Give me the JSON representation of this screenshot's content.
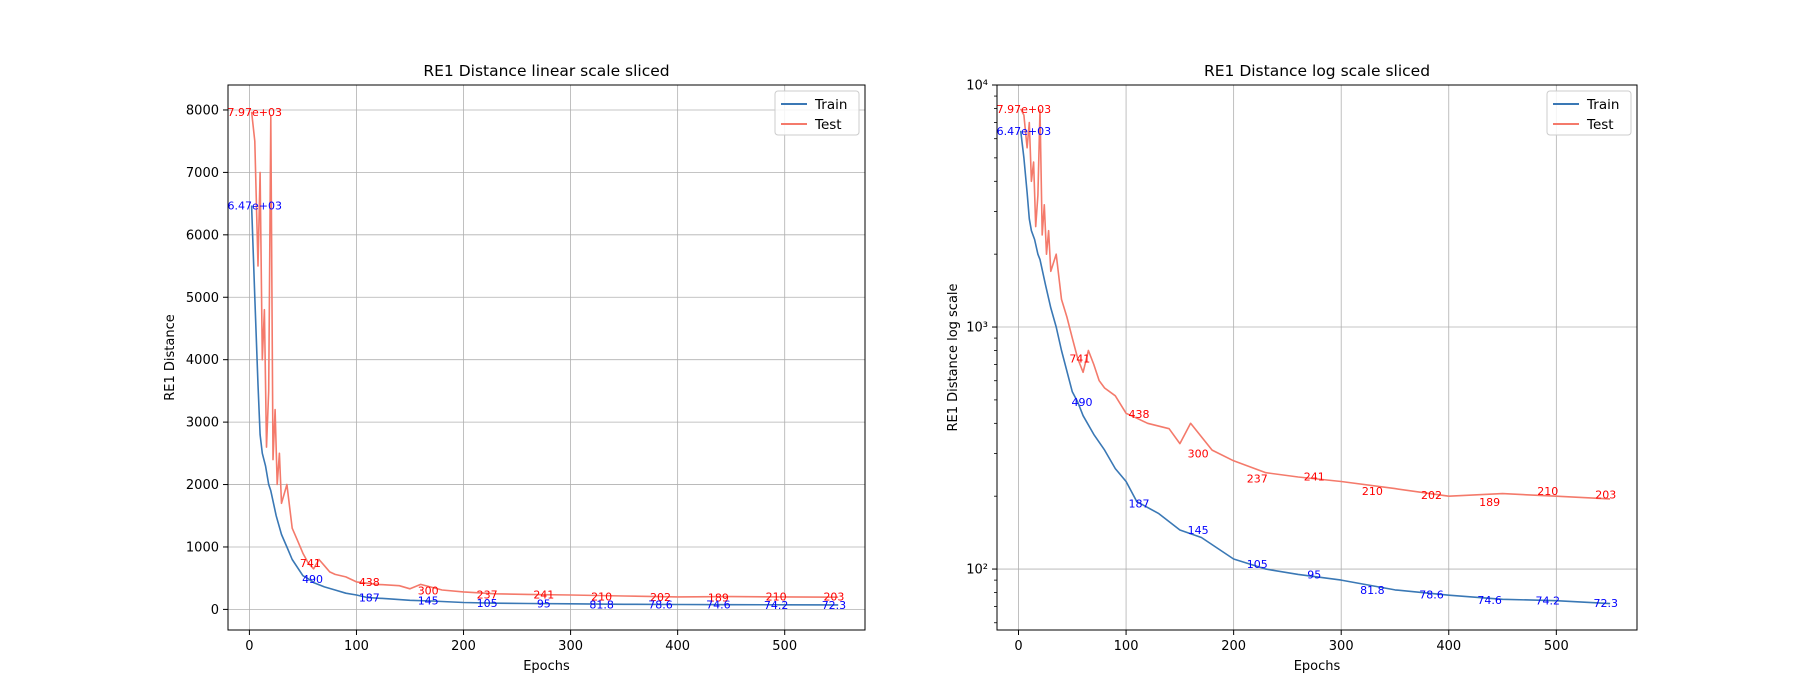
{
  "chart_data": [
    {
      "type": "line",
      "title": "RE1 Distance linear scale sliced",
      "xlabel": "Epochs",
      "ylabel": "RE1 Distance",
      "xlim": [
        -20,
        575
      ],
      "ylim": [
        -330,
        8400
      ],
      "yscale": "linear",
      "xticks": [
        0,
        100,
        200,
        300,
        400,
        500
      ],
      "xtick_labels": [
        "0",
        "100",
        "200",
        "300",
        "400",
        "500"
      ],
      "yticks": [
        0,
        1000,
        2000,
        3000,
        4000,
        5000,
        6000,
        7000,
        8000
      ],
      "ytick_labels": [
        "0",
        "1000",
        "2000",
        "3000",
        "4000",
        "5000",
        "6000",
        "7000",
        "8000"
      ],
      "grid": true,
      "legend": {
        "position": "top-right",
        "entries": [
          "Train",
          "Test"
        ]
      },
      "series": [
        {
          "name": "Train",
          "color": "#3a78b5",
          "x": [
            2,
            5,
            8,
            10,
            12,
            15,
            18,
            20,
            25,
            30,
            35,
            40,
            50,
            55,
            60,
            70,
            80,
            90,
            100,
            110,
            130,
            150,
            170,
            200,
            230,
            260,
            300,
            350,
            400,
            450,
            500,
            550
          ],
          "y": [
            6470,
            5000,
            3600,
            2800,
            2500,
            2300,
            2000,
            1900,
            1500,
            1200,
            1000,
            800,
            540,
            490,
            430,
            360,
            310,
            260,
            230,
            190,
            170,
            145,
            135,
            110,
            100,
            95,
            90,
            82,
            78,
            75,
            74,
            72
          ]
        },
        {
          "name": "Test",
          "color": "#f47a6b",
          "x": [
            2,
            5,
            8,
            10,
            12,
            14,
            16,
            18,
            20,
            22,
            24,
            26,
            28,
            30,
            35,
            40,
            45,
            50,
            55,
            60,
            65,
            70,
            75,
            80,
            90,
            100,
            110,
            120,
            140,
            150,
            160,
            180,
            200,
            230,
            260,
            300,
            350,
            400,
            450,
            500,
            550
          ],
          "y": [
            7970,
            7500,
            5500,
            7000,
            4000,
            4800,
            2600,
            3500,
            7900,
            2400,
            3200,
            2000,
            2500,
            1700,
            2000,
            1300,
            1100,
            900,
            741,
            650,
            800,
            700,
            600,
            560,
            520,
            440,
            420,
            400,
            380,
            330,
            400,
            310,
            280,
            250,
            240,
            230,
            215,
            200,
            205,
            200,
            195
          ]
        }
      ],
      "annotations": [
        {
          "text": "7.97e+03",
          "x": 5,
          "y": 7970,
          "series": "Test"
        },
        {
          "text": "6.47e+03",
          "x": 5,
          "y": 6470,
          "series": "Train"
        },
        {
          "text": "741",
          "x": 57,
          "y": 741,
          "series": "Test"
        },
        {
          "text": "490",
          "x": 59,
          "y": 490,
          "series": "Train"
        },
        {
          "text": "438",
          "x": 112,
          "y": 438,
          "series": "Test"
        },
        {
          "text": "187",
          "x": 112,
          "y": 187,
          "series": "Train"
        },
        {
          "text": "300",
          "x": 167,
          "y": 300,
          "series": "Test"
        },
        {
          "text": "145",
          "x": 167,
          "y": 145,
          "series": "Train"
        },
        {
          "text": "237",
          "x": 222,
          "y": 237,
          "series": "Test"
        },
        {
          "text": "105",
          "x": 222,
          "y": 105,
          "series": "Train"
        },
        {
          "text": "241",
          "x": 275,
          "y": 241,
          "series": "Test"
        },
        {
          "text": "95",
          "x": 275,
          "y": 95,
          "series": "Train"
        },
        {
          "text": "210",
          "x": 329,
          "y": 210,
          "series": "Test"
        },
        {
          "text": "81.8",
          "x": 329,
          "y": 81.8,
          "series": "Train"
        },
        {
          "text": "202",
          "x": 384,
          "y": 202,
          "series": "Test"
        },
        {
          "text": "78.6",
          "x": 384,
          "y": 78.6,
          "series": "Train"
        },
        {
          "text": "189",
          "x": 438,
          "y": 189,
          "series": "Test"
        },
        {
          "text": "74.6",
          "x": 438,
          "y": 74.6,
          "series": "Train"
        },
        {
          "text": "210",
          "x": 492,
          "y": 210,
          "series": "Test"
        },
        {
          "text": "74.2",
          "x": 492,
          "y": 74.2,
          "series": "Train"
        },
        {
          "text": "203",
          "x": 546,
          "y": 203,
          "series": "Test"
        },
        {
          "text": "72.3",
          "x": 546,
          "y": 72.3,
          "series": "Train"
        }
      ]
    },
    {
      "type": "line",
      "title": "RE1 Distance log scale sliced",
      "xlabel": "Epochs",
      "ylabel": "RE1 Distance log scale",
      "xlim": [
        -20,
        575
      ],
      "ylim": [
        56,
        10000
      ],
      "yscale": "log",
      "xticks": [
        0,
        100,
        200,
        300,
        400,
        500
      ],
      "xtick_labels": [
        "0",
        "100",
        "200",
        "300",
        "400",
        "500"
      ],
      "yticks": [
        100,
        1000,
        10000
      ],
      "ytick_labels": [
        "10²",
        "10³",
        "10⁴"
      ],
      "grid": true,
      "legend": {
        "position": "top-right",
        "entries": [
          "Train",
          "Test"
        ]
      },
      "series": [
        {
          "name": "Train",
          "color": "#3a78b5",
          "x": [
            2,
            5,
            8,
            10,
            12,
            15,
            18,
            20,
            25,
            30,
            35,
            40,
            50,
            55,
            60,
            70,
            80,
            90,
            100,
            110,
            130,
            150,
            170,
            200,
            230,
            260,
            300,
            350,
            400,
            450,
            500,
            550
          ],
          "y": [
            6470,
            5000,
            3600,
            2800,
            2500,
            2300,
            2000,
            1900,
            1500,
            1200,
            1000,
            800,
            540,
            490,
            430,
            360,
            310,
            260,
            230,
            190,
            170,
            145,
            135,
            110,
            100,
            95,
            90,
            82,
            78,
            75,
            74,
            72
          ]
        },
        {
          "name": "Test",
          "color": "#f47a6b",
          "x": [
            2,
            5,
            8,
            10,
            12,
            14,
            16,
            18,
            20,
            22,
            24,
            26,
            28,
            30,
            35,
            40,
            45,
            50,
            55,
            60,
            65,
            70,
            75,
            80,
            90,
            100,
            110,
            120,
            140,
            150,
            160,
            180,
            200,
            230,
            260,
            300,
            350,
            400,
            450,
            500,
            550
          ],
          "y": [
            7970,
            7500,
            5500,
            7000,
            4000,
            4800,
            2600,
            3500,
            7900,
            2400,
            3200,
            2000,
            2500,
            1700,
            2000,
            1300,
            1100,
            900,
            741,
            650,
            800,
            700,
            600,
            560,
            520,
            440,
            420,
            400,
            380,
            330,
            400,
            310,
            280,
            250,
            240,
            230,
            215,
            200,
            205,
            200,
            195
          ]
        }
      ],
      "annotations": [
        {
          "text": "7.97e+03",
          "x": 5,
          "y": 7970,
          "series": "Test"
        },
        {
          "text": "6.47e+03",
          "x": 5,
          "y": 6470,
          "series": "Train"
        },
        {
          "text": "741",
          "x": 57,
          "y": 741,
          "series": "Test"
        },
        {
          "text": "490",
          "x": 59,
          "y": 490,
          "series": "Train"
        },
        {
          "text": "438",
          "x": 112,
          "y": 438,
          "series": "Test"
        },
        {
          "text": "187",
          "x": 112,
          "y": 187,
          "series": "Train"
        },
        {
          "text": "300",
          "x": 167,
          "y": 300,
          "series": "Test"
        },
        {
          "text": "145",
          "x": 167,
          "y": 145,
          "series": "Train"
        },
        {
          "text": "237",
          "x": 222,
          "y": 237,
          "series": "Test"
        },
        {
          "text": "105",
          "x": 222,
          "y": 105,
          "series": "Train"
        },
        {
          "text": "241",
          "x": 275,
          "y": 241,
          "series": "Test"
        },
        {
          "text": "95",
          "x": 275,
          "y": 95,
          "series": "Train"
        },
        {
          "text": "210",
          "x": 329,
          "y": 210,
          "series": "Test"
        },
        {
          "text": "81.8",
          "x": 329,
          "y": 81.8,
          "series": "Train"
        },
        {
          "text": "202",
          "x": 384,
          "y": 202,
          "series": "Test"
        },
        {
          "text": "78.6",
          "x": 384,
          "y": 78.6,
          "series": "Train"
        },
        {
          "text": "189",
          "x": 438,
          "y": 189,
          "series": "Test"
        },
        {
          "text": "74.6",
          "x": 438,
          "y": 74.6,
          "series": "Train"
        },
        {
          "text": "210",
          "x": 492,
          "y": 210,
          "series": "Test"
        },
        {
          "text": "74.2",
          "x": 492,
          "y": 74.2,
          "series": "Train"
        },
        {
          "text": "203",
          "x": 546,
          "y": 203,
          "series": "Test"
        },
        {
          "text": "72.3",
          "x": 546,
          "y": 72.3,
          "series": "Train"
        }
      ]
    }
  ]
}
